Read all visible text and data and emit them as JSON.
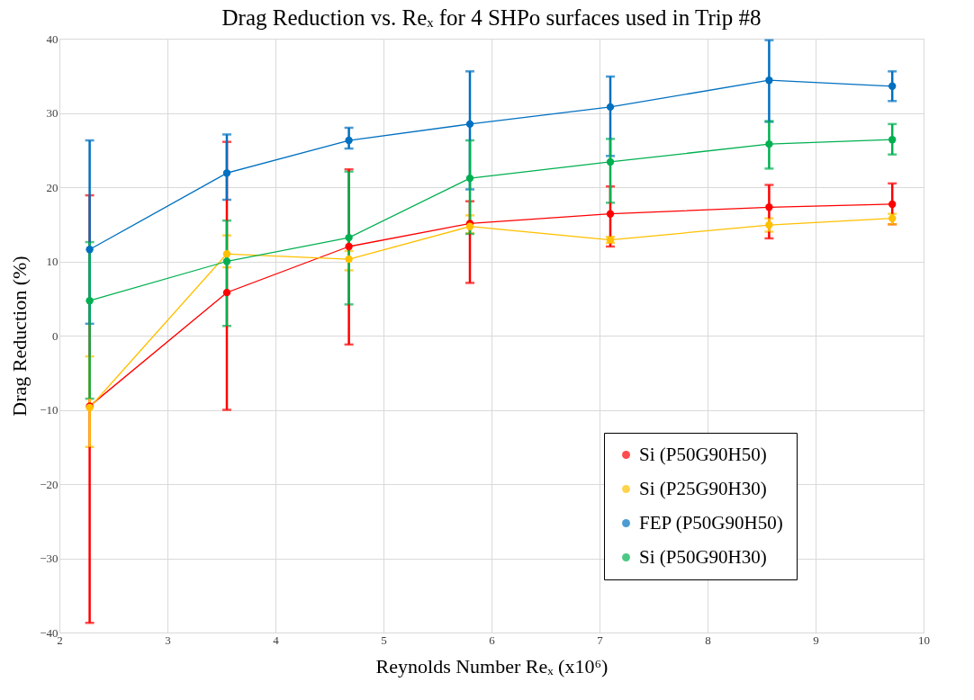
{
  "chart_data": {
    "type": "line",
    "title": "Drag Reduction vs. Reₓ for 4 SHPo surfaces used in Trip #8",
    "xlabel": "Reynolds Number Reₓ (x10⁶)",
    "ylabel": "Drag Reduction (%)",
    "x": [
      2.28,
      3.55,
      4.68,
      5.8,
      7.1,
      8.57,
      9.71
    ],
    "series": [
      {
        "name": "Si (P50G90H50)",
        "color": "#ff0000",
        "values": [
          -9.5,
          5.8,
          12.0,
          15.1,
          16.4,
          17.3,
          17.7
        ],
        "errors": [
          [
            -38.7,
            18.9
          ],
          [
            -10.0,
            26.1
          ],
          [
            -1.2,
            22.4
          ],
          [
            7.1,
            18.1
          ],
          [
            12.0,
            20.1
          ],
          [
            13.1,
            20.3
          ],
          [
            15.0,
            20.5
          ]
        ]
      },
      {
        "name": "Si (P25G90H30)",
        "color": "#ffc000",
        "values": [
          -9.7,
          11.0,
          10.3,
          14.7,
          12.9,
          14.9,
          15.8
        ],
        "errors": [
          [
            -15.0,
            -2.8
          ],
          [
            9.2,
            13.5
          ],
          [
            8.8,
            11.4
          ],
          [
            13.8,
            16.2
          ],
          [
            12.5,
            13.3
          ],
          [
            14.0,
            15.8
          ],
          [
            15.0,
            16.4
          ]
        ]
      },
      {
        "name": "FEP (P50G90H50)",
        "color": "#0070c0",
        "values": [
          11.6,
          21.9,
          26.3,
          28.5,
          30.8,
          34.4,
          33.6
        ],
        "errors": [
          [
            1.6,
            26.3
          ],
          [
            18.3,
            27.1
          ],
          [
            25.2,
            28.0
          ],
          [
            19.7,
            35.6
          ],
          [
            24.2,
            34.9
          ],
          [
            28.8,
            39.8
          ],
          [
            31.6,
            35.6
          ]
        ]
      },
      {
        "name": "Si (P50G90H30)",
        "color": "#00b050",
        "values": [
          4.7,
          10.0,
          13.2,
          21.2,
          23.4,
          25.8,
          26.4
        ],
        "errors": [
          [
            -8.5,
            12.6
          ],
          [
            1.3,
            15.5
          ],
          [
            4.2,
            22.1
          ],
          [
            13.7,
            26.3
          ],
          [
            17.9,
            26.5
          ],
          [
            22.5,
            28.9
          ],
          [
            24.4,
            28.5
          ]
        ]
      }
    ],
    "xlim": [
      2,
      10
    ],
    "xticks": [
      2,
      3,
      4,
      5,
      6,
      7,
      8,
      9,
      10
    ],
    "ylim": [
      -40,
      40
    ],
    "yticks": [
      -40,
      -30,
      -20,
      -10,
      0,
      10,
      20,
      30,
      40
    ],
    "grid": true,
    "legend": "bottom right",
    "marker": "circle",
    "line_style": "solid"
  }
}
